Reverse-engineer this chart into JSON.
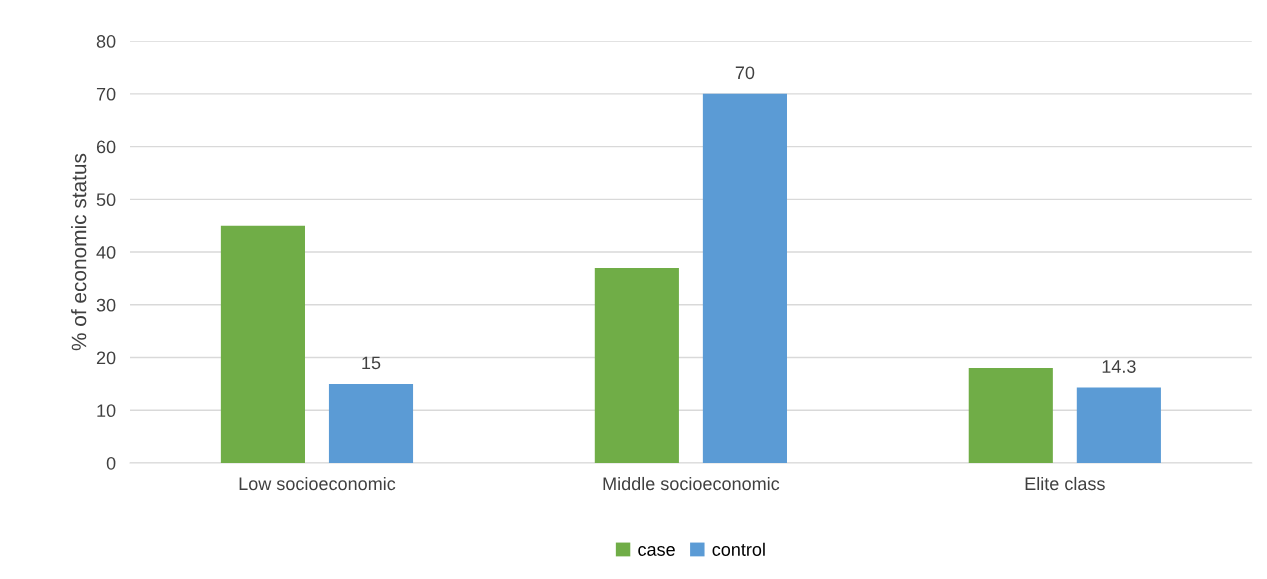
{
  "chart_data": {
    "type": "bar",
    "ylabel": "% of economic status",
    "categories": [
      "Low socioeconomic",
      "Middle socioeconomic",
      "Elite class"
    ],
    "series": [
      {
        "name": "case",
        "color": "#70ad47",
        "values": [
          45,
          37,
          18
        ]
      },
      {
        "name": "control",
        "color": "#5b9bd5",
        "values": [
          15,
          70,
          14.3
        ],
        "value_labels": [
          "15",
          "70",
          "14.3"
        ]
      }
    ],
    "ylim": [
      0,
      80
    ],
    "yticks": [
      0,
      10,
      20,
      30,
      40,
      50,
      60,
      70,
      80
    ],
    "grid": "y",
    "legend": "bottom"
  }
}
